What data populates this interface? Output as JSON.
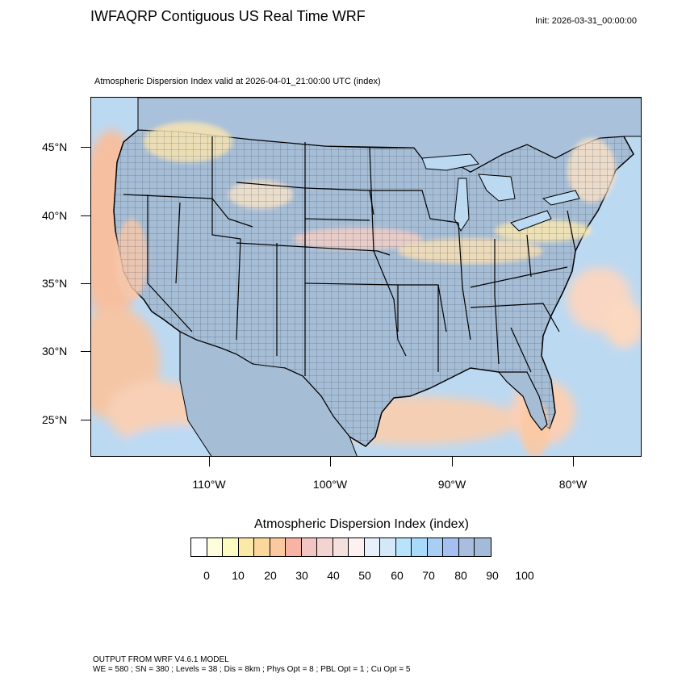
{
  "title": "IWFAQRP Contiguous US Real Time WRF",
  "init": "Init: 2026-03-31_00:00:00",
  "valid": "Atmospheric Dispersion Index valid at 2026-04-01_21:00:00 UTC   (index)",
  "lat_labels": [
    "45°N",
    "40°N",
    "35°N",
    "30°N",
    "25°N"
  ],
  "lon_labels": [
    "110°W",
    "100°W",
    "90°W",
    "80°W"
  ],
  "legend": {
    "title": "Atmospheric Dispersion Index  (index)",
    "labels": [
      "0",
      "10",
      "20",
      "30",
      "40",
      "50",
      "60",
      "70",
      "80",
      "90",
      "100"
    ],
    "colors": [
      "#ffffff",
      "#fefedc",
      "#fdfcc0",
      "#fbe9a8",
      "#fbd79b",
      "#fbc9a0",
      "#f7b4a5",
      "#f3c5c2",
      "#f3d4d1",
      "#f4e0dc",
      "#fcf0f0",
      "#e8f1fb",
      "#d3e9f9",
      "#b8e3fb",
      "#a9daf9",
      "#a8cef5",
      "#a4bff0",
      "#a9bdde",
      "#a3bbd8"
    ]
  },
  "footer": {
    "line1": "OUTPUT FROM WRF V4.6.1 MODEL",
    "line2": "WE = 580 ; SN = 380 ; Levels = 38 ; Dis = 8km ; Phys Opt = 8 ; PBL Opt = 1 ; Cu Opt = 5"
  }
}
